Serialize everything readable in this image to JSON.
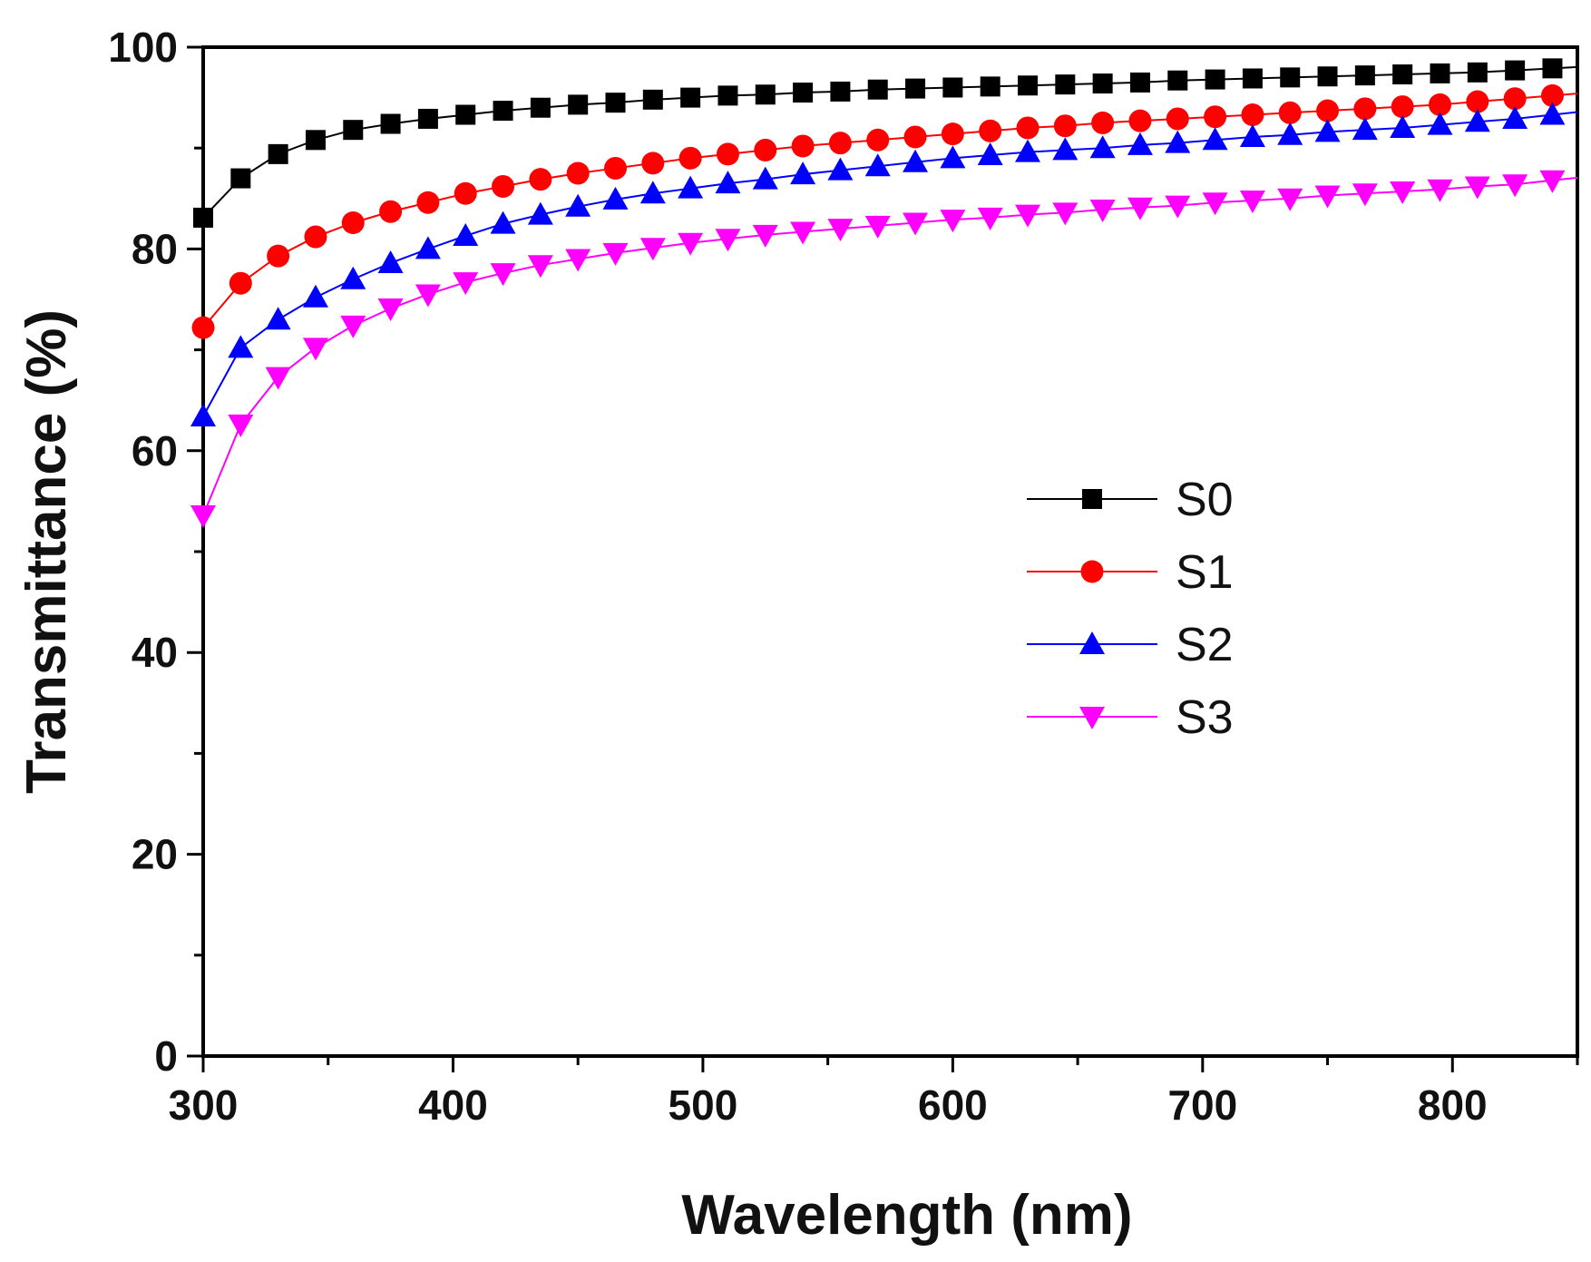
{
  "chart_data": {
    "type": "line",
    "title": "",
    "xlabel": "Wavelength (nm)",
    "ylabel": "Transmittance (%)",
    "xlim": [
      300,
      850
    ],
    "ylim": [
      0,
      100
    ],
    "xticks": [
      300,
      400,
      500,
      600,
      700,
      800
    ],
    "yticks": [
      0,
      20,
      40,
      60,
      80,
      100
    ],
    "grid": false,
    "legend_position": "center-right",
    "x": [
      300,
      315,
      330,
      345,
      360,
      375,
      390,
      405,
      420,
      435,
      450,
      465,
      480,
      495,
      510,
      525,
      540,
      555,
      570,
      585,
      600,
      615,
      630,
      645,
      660,
      675,
      690,
      705,
      720,
      735,
      750,
      765,
      780,
      795,
      810,
      825,
      840
    ],
    "series": [
      {
        "name": "S0",
        "color": "#000000",
        "marker": "square",
        "values": [
          83.1,
          87.0,
          89.4,
          90.8,
          91.8,
          92.4,
          92.9,
          93.3,
          93.7,
          94.0,
          94.3,
          94.5,
          94.8,
          95.0,
          95.2,
          95.3,
          95.5,
          95.6,
          95.8,
          95.9,
          96.0,
          96.1,
          96.2,
          96.3,
          96.4,
          96.5,
          96.7,
          96.8,
          96.9,
          97.0,
          97.1,
          97.2,
          97.3,
          97.4,
          97.5,
          97.7,
          97.9
        ]
      },
      {
        "name": "S1",
        "color": "#ff0000",
        "marker": "circle",
        "values": [
          72.2,
          76.6,
          79.3,
          81.2,
          82.6,
          83.7,
          84.6,
          85.5,
          86.2,
          86.9,
          87.5,
          88.0,
          88.5,
          89.0,
          89.4,
          89.8,
          90.2,
          90.5,
          90.8,
          91.1,
          91.4,
          91.7,
          92.0,
          92.2,
          92.5,
          92.7,
          92.9,
          93.1,
          93.3,
          93.5,
          93.7,
          93.9,
          94.1,
          94.3,
          94.6,
          94.9,
          95.2
        ]
      },
      {
        "name": "S2",
        "color": "#0000ff",
        "marker": "triangle-up",
        "values": [
          63.4,
          70.2,
          73.0,
          75.2,
          77.0,
          78.6,
          80.0,
          81.3,
          82.5,
          83.4,
          84.2,
          84.9,
          85.5,
          86.0,
          86.5,
          86.9,
          87.4,
          87.8,
          88.2,
          88.6,
          89.0,
          89.3,
          89.6,
          89.8,
          90.0,
          90.3,
          90.5,
          90.8,
          91.1,
          91.3,
          91.6,
          91.8,
          92.0,
          92.3,
          92.6,
          92.9,
          93.3
        ]
      },
      {
        "name": "S3",
        "color": "#ff00ff",
        "marker": "triangle-down",
        "values": [
          53.6,
          62.6,
          67.3,
          70.2,
          72.4,
          74.1,
          75.5,
          76.7,
          77.6,
          78.4,
          79.0,
          79.6,
          80.1,
          80.6,
          81.0,
          81.4,
          81.7,
          82.0,
          82.3,
          82.6,
          82.9,
          83.1,
          83.4,
          83.6,
          83.9,
          84.1,
          84.3,
          84.6,
          84.8,
          85.0,
          85.3,
          85.5,
          85.7,
          85.9,
          86.2,
          86.4,
          86.8
        ]
      }
    ]
  }
}
